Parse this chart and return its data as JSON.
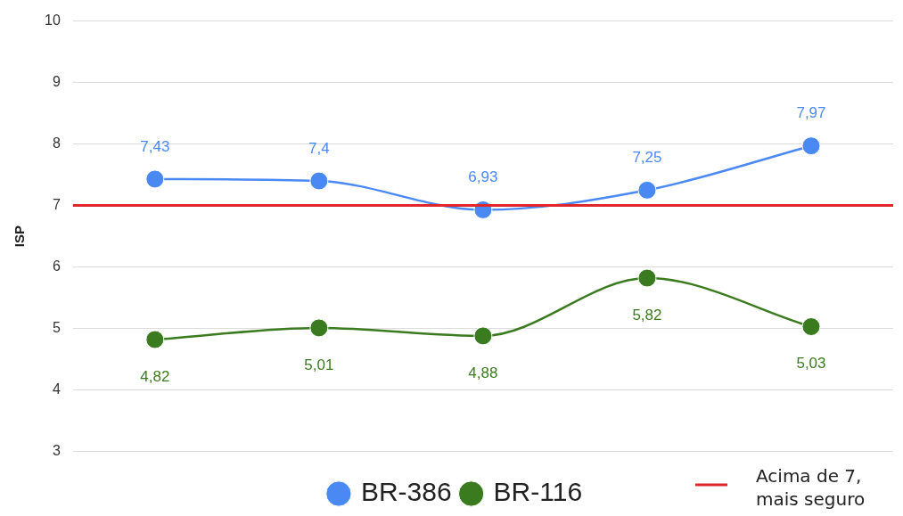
{
  "chart_data": {
    "type": "line",
    "ylabel": "ISP",
    "categories": [
      null,
      null,
      null,
      null,
      null
    ],
    "series": [
      {
        "name": "BR-386",
        "color": "#4a89f3",
        "values": [
          7.43,
          7.4,
          6.93,
          7.25,
          7.97
        ],
        "value_labels": [
          "7,43",
          "7,4",
          "6,93",
          "7,25",
          "7,97"
        ]
      },
      {
        "name": "BR-116",
        "color": "#3b7b1f",
        "values": [
          4.82,
          5.01,
          4.88,
          5.82,
          5.03
        ],
        "value_labels": [
          "4,82",
          "5,01",
          "4,88",
          "5,82",
          "5,03"
        ]
      }
    ],
    "ylim": [
      3,
      10
    ],
    "yticks": [
      3,
      4,
      5,
      6,
      7,
      8,
      9,
      10
    ],
    "grid": "y",
    "legend": "bottom",
    "marker": "circle",
    "ref_lines": [
      {
        "axis": "y",
        "value": 7,
        "label": "Acima de 7, mais seguro",
        "color": "#e0262b"
      }
    ]
  }
}
